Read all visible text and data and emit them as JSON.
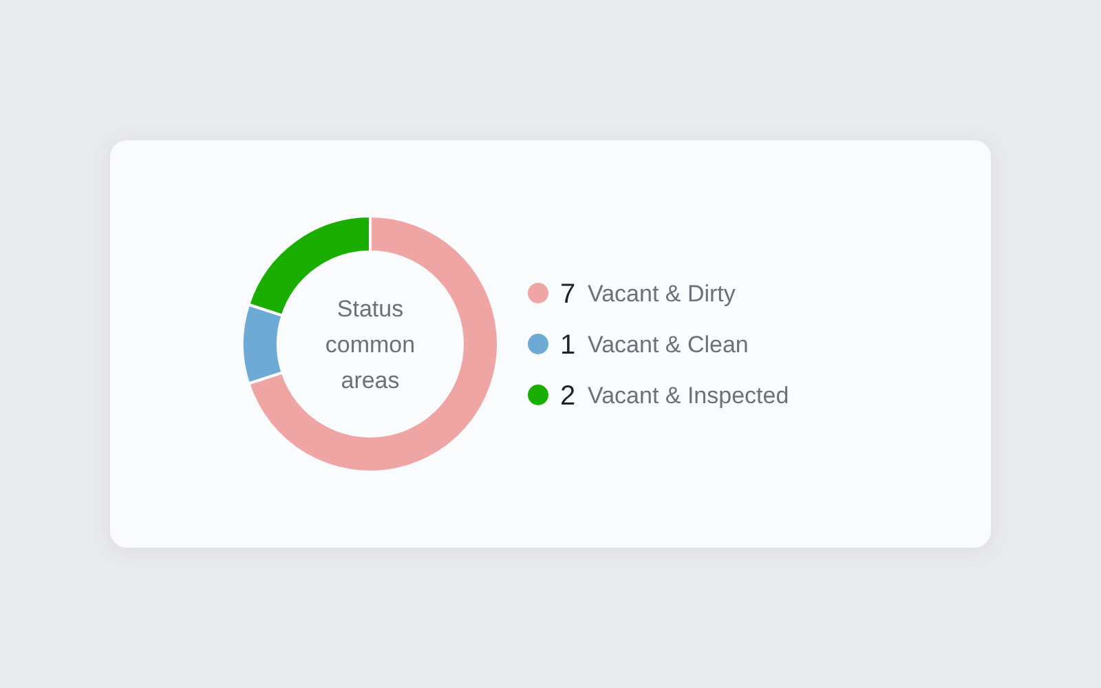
{
  "chart_data": {
    "type": "donut",
    "title": "Status common areas",
    "categories": [
      "Vacant & Dirty",
      "Vacant & Clean",
      "Vacant & Inspected"
    ],
    "values": [
      7,
      1,
      2
    ],
    "colors": [
      "#f0a5a5",
      "#6eaad6",
      "#1aaf00"
    ],
    "legend": "right",
    "data_labels": true
  }
}
